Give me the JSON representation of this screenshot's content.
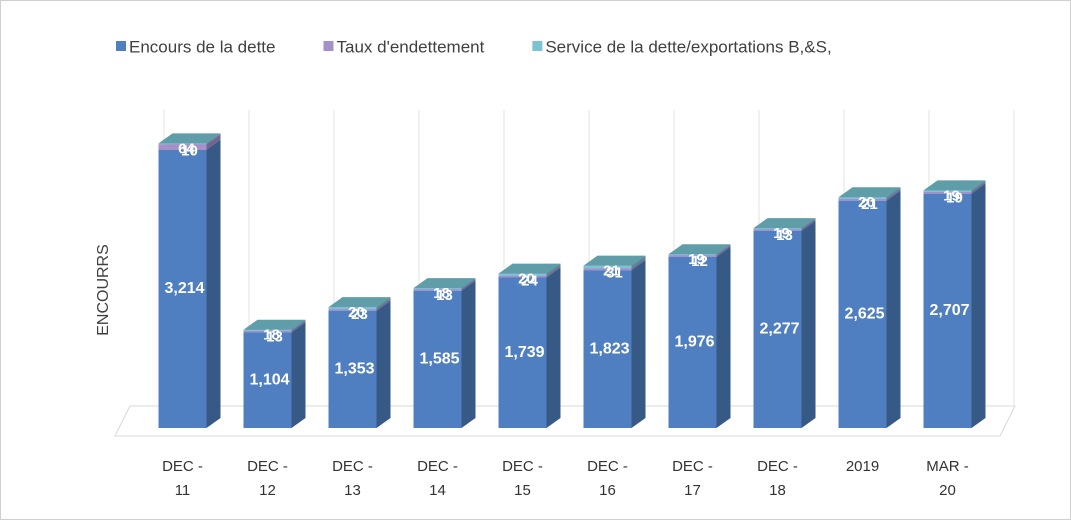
{
  "chart_data": {
    "type": "bar3d-stacked",
    "ylabel": "ENCOURRS",
    "categories": [
      "DEC - 11",
      "DEC - 12",
      "DEC - 13",
      "DEC - 14",
      "DEC - 15",
      "DEC - 16",
      "DEC - 17",
      "DEC - 18",
      "2019",
      "MAR - 20"
    ],
    "series": [
      {
        "name": "Encours  de la dette",
        "color": "#4f7fc0",
        "values": [
          3214,
          1104,
          1353,
          1585,
          1739,
          1823,
          1976,
          2277,
          2625,
          2707
        ],
        "value_labels": [
          "3,214",
          "1,104",
          "1,353",
          "1,585",
          "1,739",
          "1,823",
          "1,976",
          "2,277",
          "2,625",
          "2,707"
        ]
      },
      {
        "name": "Taux d'endettement",
        "color": "#a590c8",
        "values": [
          64,
          18,
          20,
          18,
          20,
          21,
          19,
          19,
          20,
          19
        ]
      },
      {
        "name": "Service de la dette/exportations B,&S,",
        "color": "#7cc4d4",
        "values": [
          10,
          13,
          23,
          13,
          24,
          31,
          12,
          13,
          21,
          19
        ]
      }
    ],
    "ylim": [
      0,
      3500
    ]
  }
}
